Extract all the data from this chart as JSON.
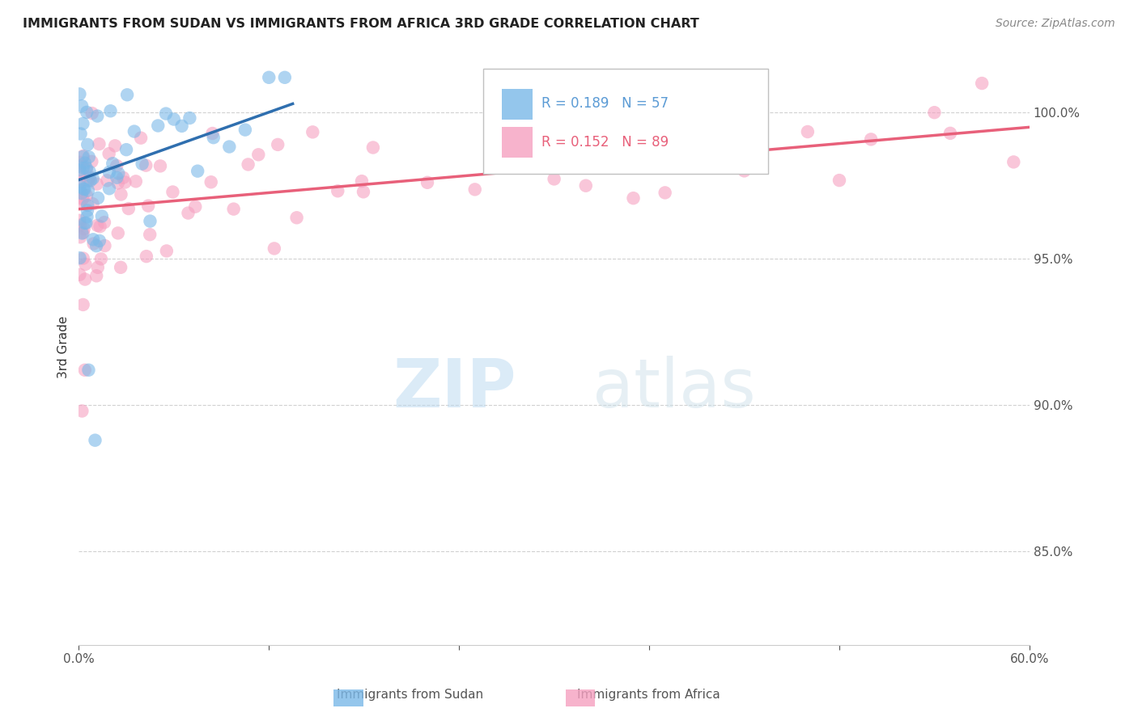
{
  "title": "IMMIGRANTS FROM SUDAN VS IMMIGRANTS FROM AFRICA 3RD GRADE CORRELATION CHART",
  "source": "Source: ZipAtlas.com",
  "ylabel": "3rd Grade",
  "ytick_labels": [
    "100.0%",
    "95.0%",
    "90.0%",
    "85.0%"
  ],
  "ytick_values": [
    1.0,
    0.95,
    0.9,
    0.85
  ],
  "xmin": 0.0,
  "xmax": 0.6,
  "ymin": 0.818,
  "ymax": 1.022,
  "sudan_color": "#7ab8e8",
  "africa_color": "#f5a0c0",
  "sudan_line_color": "#2f6faf",
  "africa_line_color": "#e8607a",
  "sudan_R": 0.189,
  "sudan_N": 57,
  "africa_R": 0.152,
  "africa_N": 89,
  "legend_label_sudan": "Immigrants from Sudan",
  "legend_label_africa": "Immigrants from Africa",
  "watermark_zip": "ZIP",
  "watermark_atlas": "atlas",
  "grid_color": "#cccccc",
  "ytick_color": "#5b9bd5",
  "xtick_color": "#555555"
}
